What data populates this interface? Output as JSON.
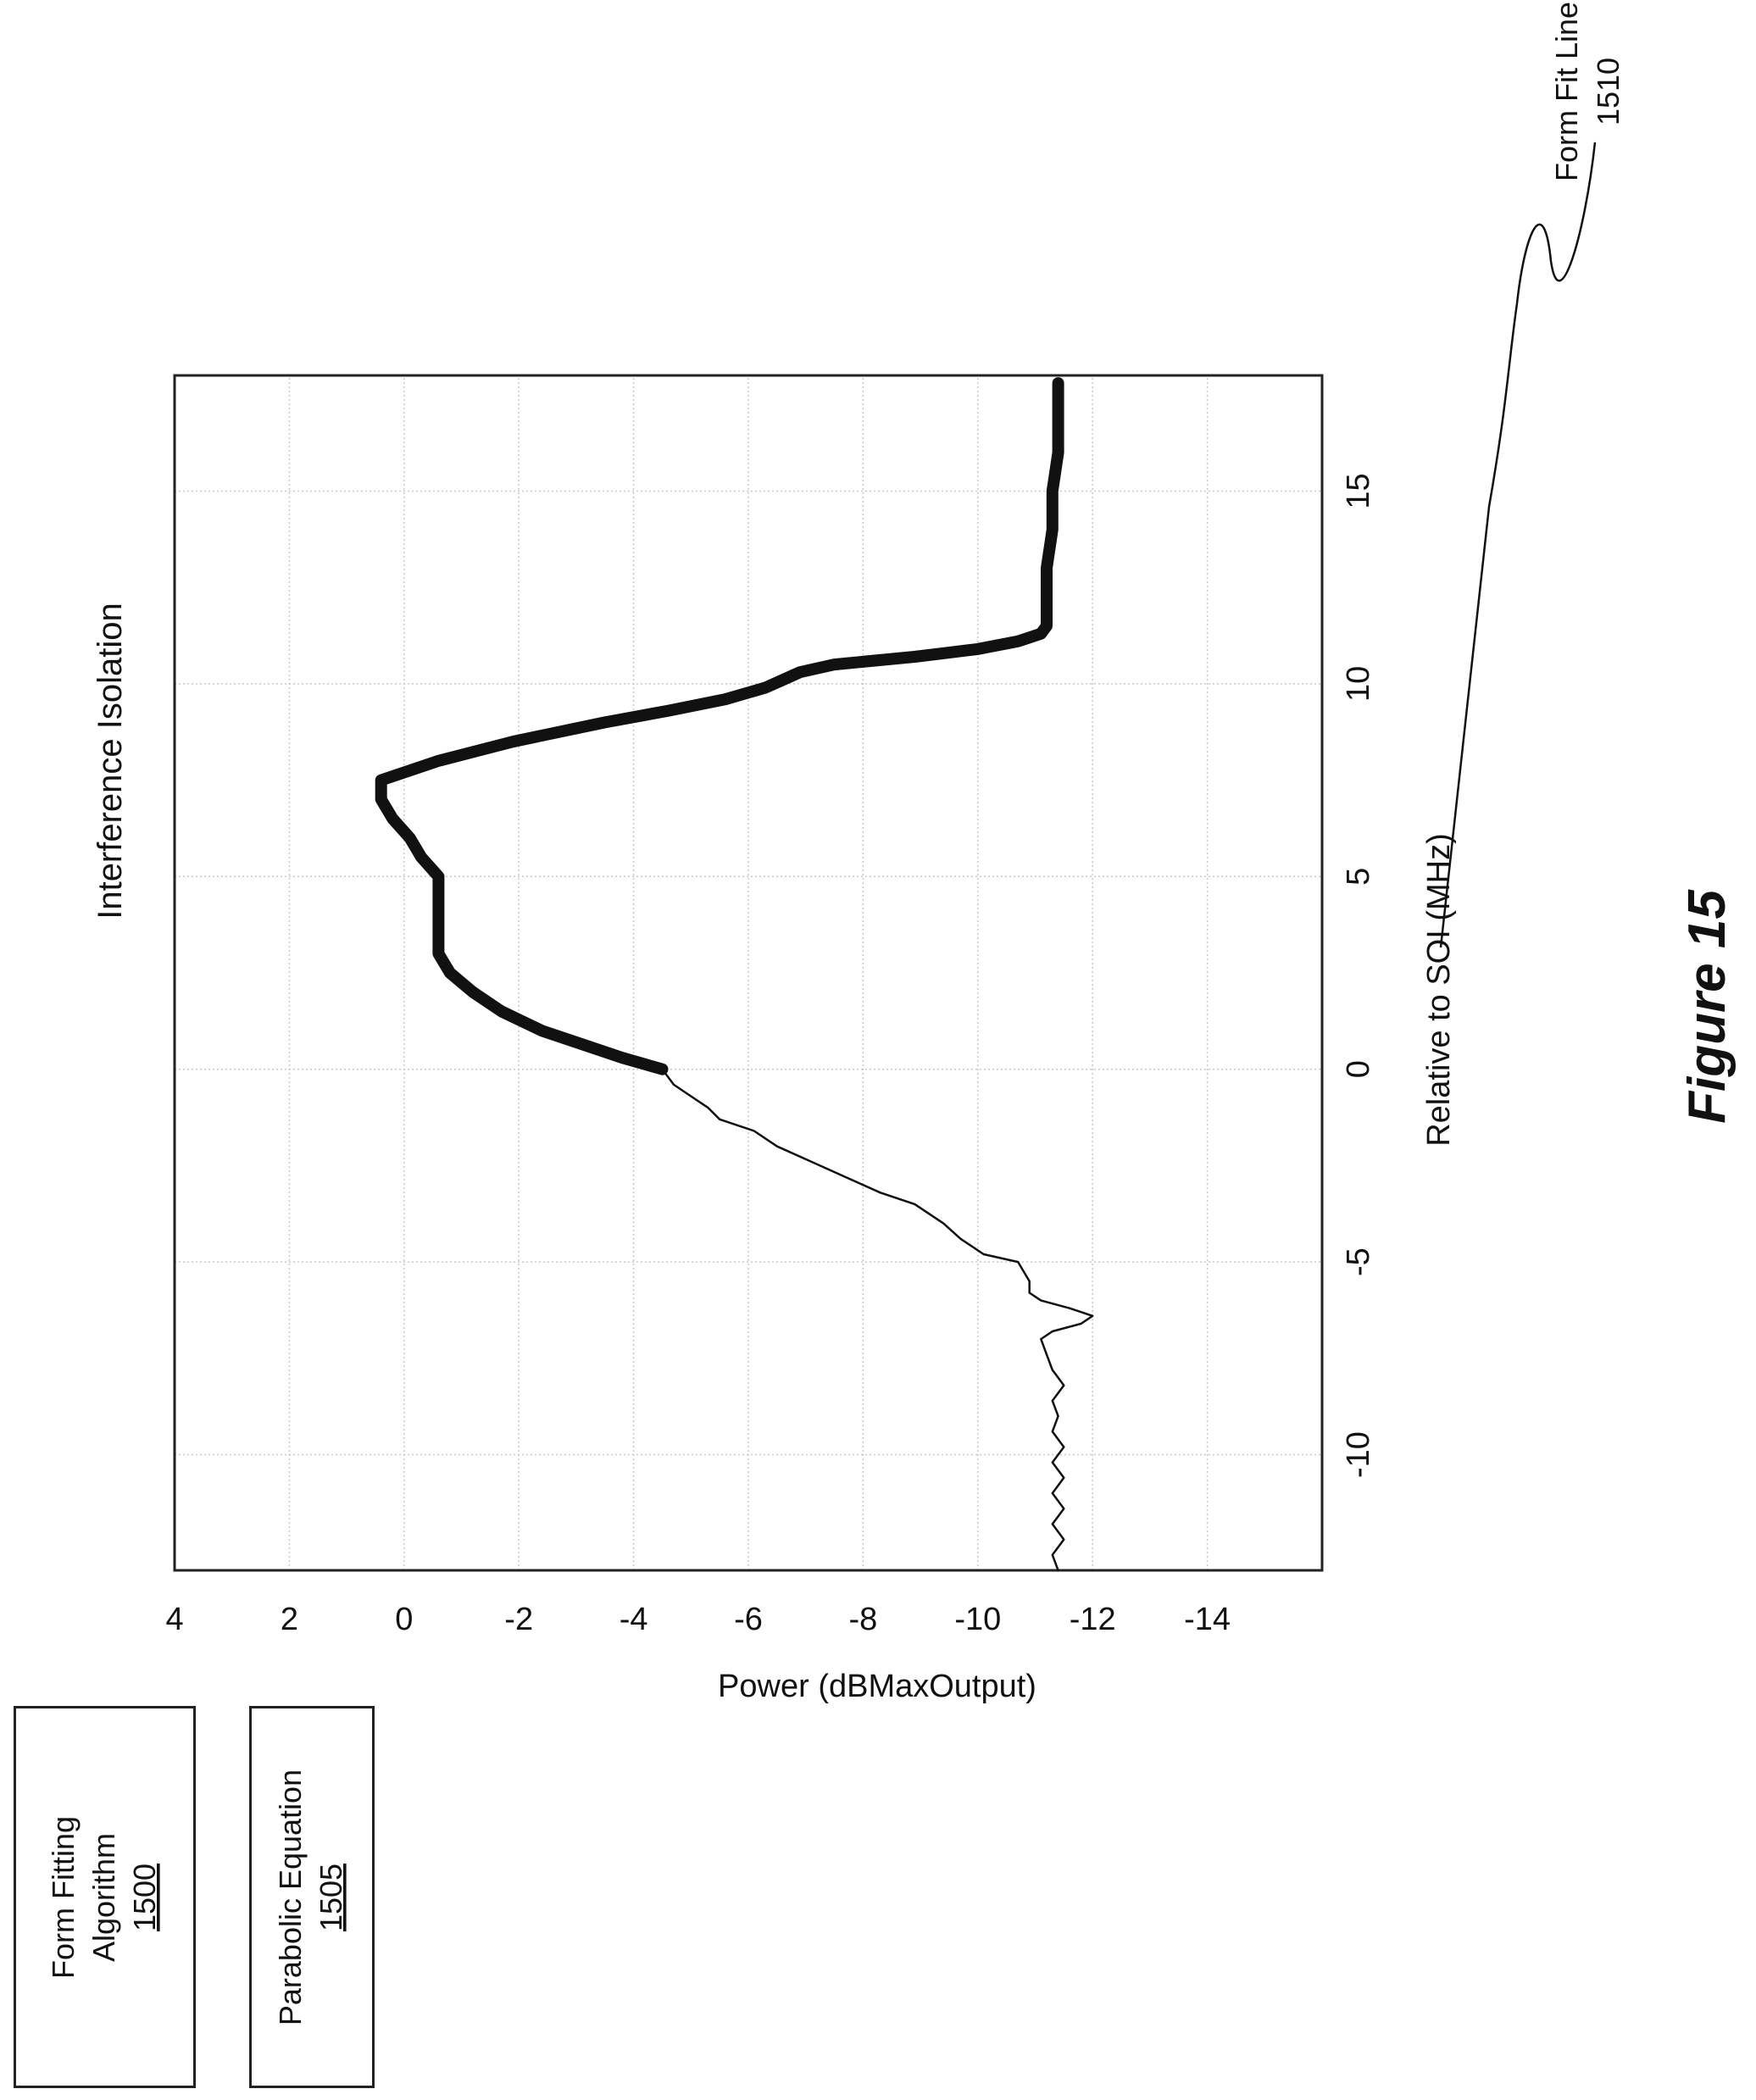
{
  "figure_caption": "Figure 15",
  "boxes": {
    "algorithm": {
      "line1": "Form Fitting",
      "line2": "Algorithm",
      "ref": "1500"
    },
    "equation": {
      "line1": "Parabolic Equation",
      "ref": "1505"
    }
  },
  "callout": {
    "line1": "Form Fit Line",
    "line2": "1510"
  },
  "chart_data": {
    "type": "line",
    "title": "Interference Isolation",
    "xlabel": "Relative to SOI (MHz)",
    "ylabel": "Power (dBMaxOutput)",
    "xlim": [
      -13,
      18
    ],
    "ylim": [
      -16,
      4
    ],
    "xticks": [
      -10,
      -5,
      0,
      5,
      10,
      15
    ],
    "yticks": [
      4,
      2,
      0,
      -2,
      -4,
      -6,
      -8,
      -10,
      -12,
      -14
    ],
    "xtick_labels": [
      "-10",
      "-5",
      "0",
      "5",
      "10",
      "15"
    ],
    "ytick_labels": [
      "4",
      "2",
      "0",
      "-2",
      "-4",
      "-6",
      "-8",
      "-10",
      "-12",
      "-14"
    ],
    "grid": true,
    "series": [
      {
        "style": "thin",
        "points": [
          [
            -13,
            -11.4
          ],
          [
            -12.6,
            -11.3
          ],
          [
            -12.2,
            -11.5
          ],
          [
            -11.8,
            -11.3
          ],
          [
            -11.4,
            -11.5
          ],
          [
            -11,
            -11.3
          ],
          [
            -10.6,
            -11.5
          ],
          [
            -10.2,
            -11.3
          ],
          [
            -9.8,
            -11.5
          ],
          [
            -9.4,
            -11.3
          ],
          [
            -9,
            -11.4
          ],
          [
            -8.6,
            -11.3
          ],
          [
            -8.2,
            -11.5
          ],
          [
            -7.8,
            -11.3
          ],
          [
            -7.4,
            -11.2
          ],
          [
            -7.0,
            -11.1
          ],
          [
            -6.8,
            -11.3
          ],
          [
            -6.6,
            -11.8
          ],
          [
            -6.4,
            -12.0
          ],
          [
            -6.2,
            -11.6
          ],
          [
            -6.0,
            -11.1
          ],
          [
            -5.8,
            -10.9
          ],
          [
            -5.5,
            -10.9
          ],
          [
            -5.0,
            -10.7
          ],
          [
            -4.8,
            -10.1
          ],
          [
            -4.4,
            -9.7
          ],
          [
            -4.0,
            -9.4
          ],
          [
            -3.5,
            -8.9
          ],
          [
            -3.2,
            -8.3
          ],
          [
            -2.8,
            -7.7
          ],
          [
            -2.4,
            -7.1
          ],
          [
            -2.0,
            -6.5
          ],
          [
            -1.6,
            -6.1
          ],
          [
            -1.3,
            -5.5
          ],
          [
            -1.0,
            -5.3
          ],
          [
            -0.6,
            -4.9
          ],
          [
            -0.4,
            -4.7
          ],
          [
            -0.2,
            -4.6
          ],
          [
            0,
            -4.5
          ]
        ]
      },
      {
        "style": "thick",
        "name": "Form Fit Line 1510",
        "points": [
          [
            0,
            -4.5
          ],
          [
            0.3,
            -3.8
          ],
          [
            0.7,
            -3.0
          ],
          [
            1.0,
            -2.4
          ],
          [
            1.5,
            -1.7
          ],
          [
            2.0,
            -1.2
          ],
          [
            2.5,
            -0.8
          ],
          [
            3.0,
            -0.6
          ],
          [
            3.5,
            -0.6
          ],
          [
            4.0,
            -0.6
          ],
          [
            4.5,
            -0.6
          ],
          [
            5.0,
            -0.6
          ],
          [
            5.5,
            -0.3
          ],
          [
            6.0,
            -0.1
          ],
          [
            6.5,
            0.2
          ],
          [
            7.0,
            0.4
          ],
          [
            7.5,
            0.4
          ],
          [
            8.0,
            -0.6
          ],
          [
            8.5,
            -1.9
          ],
          [
            9.0,
            -3.5
          ],
          [
            9.3,
            -4.6
          ],
          [
            9.6,
            -5.6
          ],
          [
            9.9,
            -6.3
          ],
          [
            10.1,
            -6.6
          ],
          [
            10.3,
            -6.9
          ],
          [
            10.5,
            -7.5
          ],
          [
            10.7,
            -8.9
          ],
          [
            10.9,
            -10.0
          ],
          [
            11.1,
            -10.7
          ],
          [
            11.3,
            -11.1
          ],
          [
            11.5,
            -11.2
          ],
          [
            12,
            -11.2
          ],
          [
            13,
            -11.2
          ],
          [
            14,
            -11.3
          ],
          [
            15,
            -11.3
          ],
          [
            16,
            -11.4
          ],
          [
            17,
            -11.4
          ],
          [
            17.8,
            -11.4
          ]
        ]
      }
    ]
  }
}
